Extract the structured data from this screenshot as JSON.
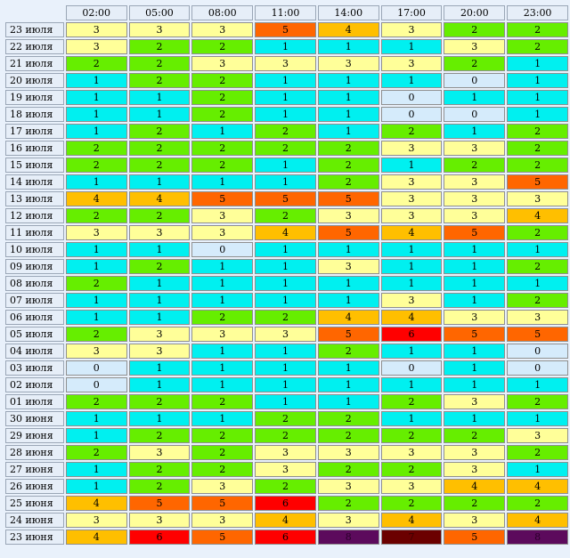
{
  "times": [
    "02:00",
    "05:00",
    "08:00",
    "11:00",
    "14:00",
    "17:00",
    "20:00",
    "23:00"
  ],
  "rows": [
    {
      "date": "23 июля",
      "values": [
        "3",
        "3",
        "3",
        "5",
        "4",
        "3",
        "2",
        "2"
      ]
    },
    {
      "date": "22 июля",
      "values": [
        "3",
        "2",
        "2",
        "1",
        "1",
        "1",
        "3",
        "2"
      ]
    },
    {
      "date": "21 июля",
      "values": [
        "2",
        "2",
        "3",
        "3",
        "3",
        "3",
        "2",
        "1"
      ]
    },
    {
      "date": "20 июля",
      "values": [
        "1",
        "2",
        "2",
        "1",
        "1",
        "1",
        "0",
        "1"
      ]
    },
    {
      "date": "19 июля",
      "values": [
        "1",
        "1",
        "2",
        "1",
        "1",
        "0",
        "1",
        "1"
      ]
    },
    {
      "date": "18 июля",
      "values": [
        "1",
        "1",
        "2",
        "1",
        "1",
        "0",
        "0",
        "1"
      ]
    },
    {
      "date": "17 июля",
      "values": [
        "1",
        "2",
        "1",
        "2",
        "1",
        "2",
        "1",
        "2"
      ]
    },
    {
      "date": "16 июля",
      "values": [
        "2",
        "2",
        "2",
        "2",
        "2",
        "3",
        "3",
        "2"
      ]
    },
    {
      "date": "15 июля",
      "values": [
        "2",
        "2",
        "2",
        "1",
        "2",
        "1",
        "2",
        "2"
      ]
    },
    {
      "date": "14 июля",
      "values": [
        "1",
        "1",
        "1",
        "1",
        "2",
        "3",
        "3",
        "5"
      ]
    },
    {
      "date": "13 июля",
      "values": [
        "4",
        "4",
        "5",
        "5",
        "5",
        "3",
        "3",
        "3"
      ]
    },
    {
      "date": "12 июля",
      "values": [
        "2",
        "2",
        "3",
        "2",
        "3",
        "3",
        "3",
        "4"
      ]
    },
    {
      "date": "11 июля",
      "values": [
        "3",
        "3",
        "3",
        "4",
        "5",
        "4",
        "5",
        "2"
      ]
    },
    {
      "date": "10 июля",
      "values": [
        "1",
        "1",
        "0",
        "1",
        "1",
        "1",
        "1",
        "1"
      ]
    },
    {
      "date": "09 июля",
      "values": [
        "1",
        "2",
        "1",
        "1",
        "3",
        "1",
        "1",
        "2"
      ]
    },
    {
      "date": "08 июля",
      "values": [
        "2",
        "1",
        "1",
        "1",
        "1",
        "1",
        "1",
        "1"
      ]
    },
    {
      "date": "07 июля",
      "values": [
        "1",
        "1",
        "1",
        "1",
        "1",
        "3",
        "1",
        "2"
      ]
    },
    {
      "date": "06 июля",
      "values": [
        "1",
        "1",
        "2",
        "2",
        "4",
        "4",
        "3",
        "3"
      ]
    },
    {
      "date": "05 июля",
      "values": [
        "2",
        "3",
        "3",
        "3",
        "5",
        "6",
        "5",
        "5"
      ]
    },
    {
      "date": "04 июля",
      "values": [
        "3",
        "3",
        "1",
        "1",
        "2",
        "1",
        "1",
        "0"
      ]
    },
    {
      "date": "03 июля",
      "values": [
        "0",
        "1",
        "1",
        "1",
        "1",
        "0",
        "1",
        "0"
      ]
    },
    {
      "date": "02 июля",
      "values": [
        "0",
        "1",
        "1",
        "1",
        "1",
        "1",
        "1",
        "1"
      ]
    },
    {
      "date": "01 июля",
      "values": [
        "2",
        "2",
        "2",
        "1",
        "1",
        "2",
        "3",
        "2"
      ]
    },
    {
      "date": "30 июня",
      "values": [
        "1",
        "1",
        "1",
        "2",
        "2",
        "1",
        "1",
        "1"
      ]
    },
    {
      "date": "29 июня",
      "values": [
        "1",
        "2",
        "2",
        "2",
        "2",
        "2",
        "2",
        "3"
      ]
    },
    {
      "date": "28 июня",
      "values": [
        "2",
        "3",
        "2",
        "3",
        "3",
        "3",
        "3",
        "2"
      ]
    },
    {
      "date": "27 июня",
      "values": [
        "1",
        "2",
        "2",
        "3",
        "2",
        "2",
        "3",
        "1"
      ]
    },
    {
      "date": "26 июня",
      "values": [
        "1",
        "2",
        "3",
        "2",
        "3",
        "3",
        "4",
        "4"
      ]
    },
    {
      "date": "25 июня",
      "values": [
        "4",
        "5",
        "5",
        "6",
        "2",
        "2",
        "2",
        "2"
      ]
    },
    {
      "date": "24 июня",
      "values": [
        "3",
        "3",
        "3",
        "4",
        "3",
        "4",
        "3",
        "4"
      ]
    },
    {
      "date": "23 июня",
      "values": [
        "4",
        "6",
        "5",
        "6",
        "8",
        "7",
        "5",
        "8"
      ]
    }
  ],
  "colors": {
    "0": "#d5ebfb",
    "1": "#00f0f0",
    "2": "#66ee00",
    "3": "#ffff99",
    "4": "#ffbf00",
    "5": "#ff6600",
    "6": "#ff0000",
    "7": "#6b0000",
    "8": "#5c0a5c"
  }
}
